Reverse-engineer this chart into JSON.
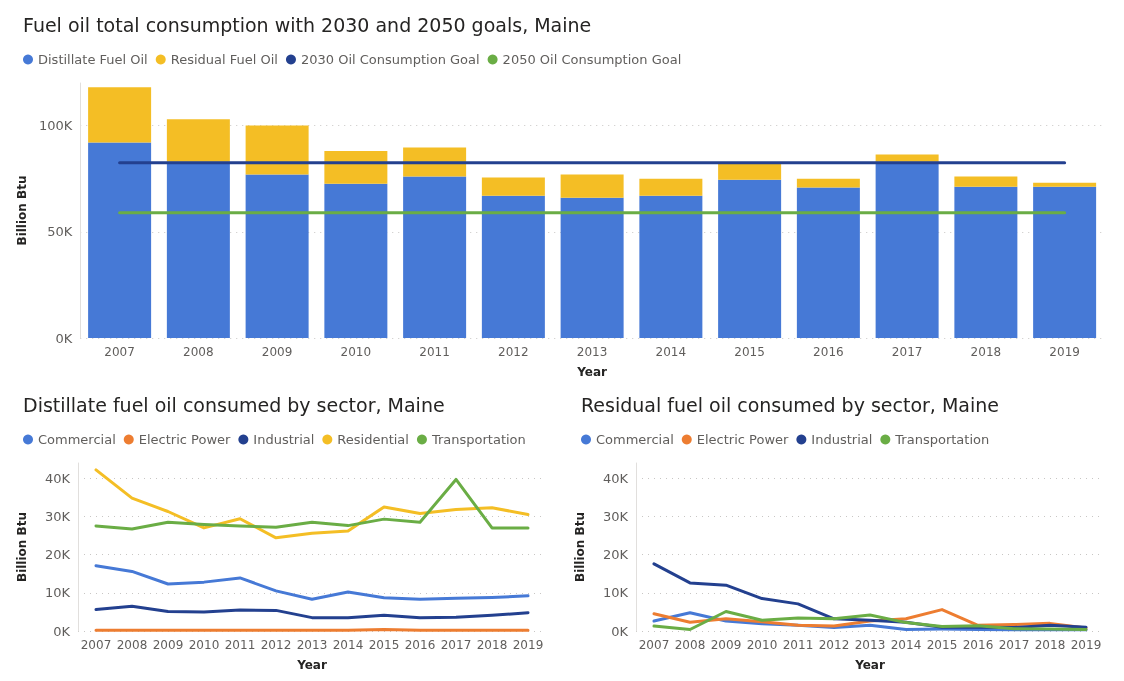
{
  "chart_data": [
    {
      "type": "bar",
      "title": "Fuel oil total consumption with 2030 and 2050 goals, Maine",
      "xlabel": "Year",
      "ylabel": "Billion Btu",
      "stacked": true,
      "legend": "top left",
      "grid": "y",
      "ylim": [
        0,
        120000
      ],
      "yticks": [
        {
          "value": 0,
          "label": "0K"
        },
        {
          "value": 50000,
          "label": "50K"
        },
        {
          "value": 100000,
          "label": "100K"
        }
      ],
      "categories": [
        "2007",
        "2008",
        "2009",
        "2010",
        "2011",
        "2012",
        "2013",
        "2014",
        "2015",
        "2016",
        "2017",
        "2018",
        "2019"
      ],
      "series": [
        {
          "name": "Distillate Fuel Oil",
          "color": "#4679d6",
          "values": [
            92000,
            83000,
            77000,
            72600,
            76000,
            67000,
            66000,
            67000,
            74500,
            70800,
            83000,
            71200,
            71200
          ]
        },
        {
          "name": "Residual Fuel Oil",
          "color": "#f4be25",
          "values": [
            26000,
            20000,
            23000,
            15400,
            13600,
            8500,
            11000,
            8000,
            8000,
            4200,
            3300,
            4800,
            1900
          ]
        },
        {
          "name": "2030 Oil Consumption Goal",
          "type": "line",
          "color": "#23408f",
          "values": [
            82500,
            82500,
            82500,
            82500,
            82500,
            82500,
            82500,
            82500,
            82500,
            82500,
            82500,
            82500,
            82500
          ]
        },
        {
          "name": "2050 Oil Consumption Goal",
          "type": "line",
          "color": "#6aad45",
          "values": [
            59000,
            59000,
            59000,
            59000,
            59000,
            59000,
            59000,
            59000,
            59000,
            59000,
            59000,
            59000,
            59000
          ]
        }
      ]
    },
    {
      "type": "line",
      "title": "Distillate fuel oil consumed by sector, Maine",
      "xlabel": "Year",
      "ylabel": "Billion Btu",
      "legend": "top left",
      "grid": "y",
      "marker": "none",
      "line_style": "solid",
      "ylim": [
        0,
        44000
      ],
      "yticks": [
        {
          "value": 0,
          "label": "0K"
        },
        {
          "value": 10000,
          "label": "10K"
        },
        {
          "value": 20000,
          "label": "20K"
        },
        {
          "value": 30000,
          "label": "30K"
        },
        {
          "value": 40000,
          "label": "40K"
        }
      ],
      "categories": [
        "2007",
        "2008",
        "2009",
        "2010",
        "2011",
        "2012",
        "2013",
        "2014",
        "2015",
        "2016",
        "2017",
        "2018",
        "2019"
      ],
      "series": [
        {
          "name": "Commercial",
          "color": "#4679d6",
          "values": [
            17100,
            15600,
            12300,
            12800,
            13900,
            10500,
            8300,
            10200,
            8700,
            8300,
            8600,
            8800,
            9200
          ]
        },
        {
          "name": "Electric Power",
          "color": "#ed7d31",
          "values": [
            200,
            200,
            200,
            200,
            200,
            200,
            200,
            200,
            400,
            200,
            200,
            200,
            200
          ]
        },
        {
          "name": "Industrial",
          "color": "#23408f",
          "values": [
            5600,
            6500,
            5100,
            5000,
            5500,
            5400,
            3500,
            3500,
            4100,
            3500,
            3600,
            4100,
            4800
          ]
        },
        {
          "name": "Residential",
          "color": "#f4be25",
          "values": [
            42200,
            34800,
            31300,
            27000,
            29400,
            24400,
            25600,
            26200,
            32500,
            30800,
            31800,
            32300,
            30500
          ]
        },
        {
          "name": "Transportation",
          "color": "#6aad45",
          "values": [
            27500,
            26700,
            28500,
            27900,
            27500,
            27200,
            28500,
            27600,
            29300,
            28500,
            39700,
            27000,
            27000
          ]
        }
      ]
    },
    {
      "type": "line",
      "title": "Residual fuel oil consumed by sector, Maine",
      "xlabel": "Year",
      "ylabel": "Billion Btu",
      "legend": "top left",
      "grid": "y",
      "marker": "none",
      "line_style": "solid",
      "ylim": [
        0,
        44000
      ],
      "yticks": [
        {
          "value": 0,
          "label": "0K"
        },
        {
          "value": 10000,
          "label": "10K"
        },
        {
          "value": 20000,
          "label": "20K"
        },
        {
          "value": 30000,
          "label": "30K"
        },
        {
          "value": 40000,
          "label": "40K"
        }
      ],
      "categories": [
        "2007",
        "2008",
        "2009",
        "2010",
        "2011",
        "2012",
        "2013",
        "2014",
        "2015",
        "2016",
        "2017",
        "2018",
        "2019"
      ],
      "series": [
        {
          "name": "Commercial",
          "color": "#4679d6",
          "values": [
            2600,
            4800,
            2600,
            1900,
            1500,
            900,
            1500,
            400,
            500,
            400,
            300,
            300,
            300
          ]
        },
        {
          "name": "Electric Power",
          "color": "#ed7d31",
          "values": [
            4500,
            2300,
            3200,
            2400,
            1500,
            1300,
            2600,
            3200,
            5600,
            1500,
            1700,
            2000,
            800
          ]
        },
        {
          "name": "Industrial",
          "color": "#23408f",
          "values": [
            17600,
            12600,
            12000,
            8500,
            7100,
            3200,
            2800,
            2300,
            1000,
            1000,
            900,
            1500,
            1000
          ]
        },
        {
          "name": "Transportation",
          "color": "#6aad45",
          "values": [
            1300,
            400,
            5100,
            2800,
            3400,
            3200,
            4200,
            2200,
            1200,
            1400,
            600,
            500,
            400
          ]
        }
      ]
    }
  ]
}
